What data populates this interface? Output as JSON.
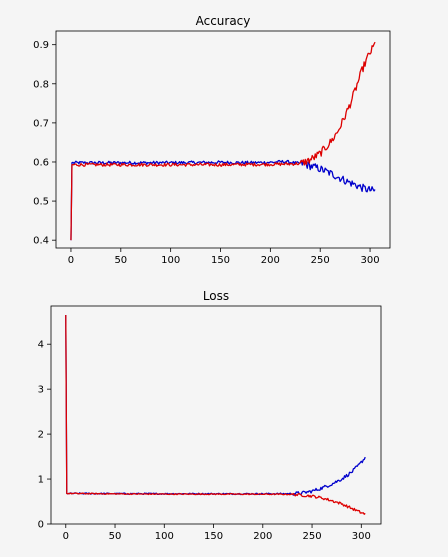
{
  "colors": {
    "background": "#f5f5f5",
    "axes_face": "#f5f5f5",
    "frame": "#000000",
    "series_blue": "#0000cc",
    "series_red": "#dd0000"
  },
  "chart_data": [
    {
      "type": "line",
      "title": "Accuracy",
      "xlabel": "",
      "ylabel": "",
      "xlim": [
        -15,
        320
      ],
      "ylim": [
        0.38,
        0.935
      ],
      "xticks": [
        0,
        50,
        100,
        150,
        200,
        250,
        300
      ],
      "yticks": [
        0.4,
        0.5,
        0.6,
        0.7,
        0.8,
        0.9
      ],
      "ytick_labels": [
        "0.4",
        "0.5",
        "0.6",
        "0.7",
        "0.8",
        "0.9"
      ],
      "grid": false,
      "legend": "none",
      "series": [
        {
          "color": "#0000cc",
          "points": [
            [
              0,
              0.4
            ],
            [
              1,
              0.598
            ],
            [
              10,
              0.598
            ],
            [
              50,
              0.598
            ],
            [
              100,
              0.598
            ],
            [
              150,
              0.599
            ],
            [
              180,
              0.598
            ],
            [
              200,
              0.599
            ],
            [
              215,
              0.601
            ],
            [
              225,
              0.597
            ],
            [
              232,
              0.596
            ],
            [
              240,
              0.59
            ],
            [
              248,
              0.584
            ],
            [
              255,
              0.577
            ],
            [
              262,
              0.569
            ],
            [
              270,
              0.559
            ],
            [
              278,
              0.549
            ],
            [
              285,
              0.542
            ],
            [
              292,
              0.534
            ],
            [
              298,
              0.529
            ],
            [
              305,
              0.526
            ]
          ],
          "noise": 0.004
        },
        {
          "color": "#dd0000",
          "points": [
            [
              0,
              0.4
            ],
            [
              1,
              0.593
            ],
            [
              10,
              0.593
            ],
            [
              50,
              0.593
            ],
            [
              100,
              0.593
            ],
            [
              150,
              0.593
            ],
            [
              200,
              0.594
            ],
            [
              220,
              0.595
            ],
            [
              230,
              0.596
            ],
            [
              237,
              0.602
            ],
            [
              243,
              0.61
            ],
            [
              250,
              0.622
            ],
            [
              256,
              0.638
            ],
            [
              262,
              0.656
            ],
            [
              268,
              0.68
            ],
            [
              274,
              0.712
            ],
            [
              280,
              0.748
            ],
            [
              286,
              0.79
            ],
            [
              292,
              0.835
            ],
            [
              298,
              0.87
            ],
            [
              302,
              0.888
            ],
            [
              305,
              0.902
            ]
          ],
          "noise": 0.004
        }
      ]
    },
    {
      "type": "line",
      "title": "Loss",
      "xlabel": "",
      "ylabel": "",
      "xlim": [
        -15,
        320
      ],
      "ylim": [
        0,
        4.85
      ],
      "xticks": [
        0,
        50,
        100,
        150,
        200,
        250,
        300
      ],
      "yticks": [
        0,
        1,
        2,
        3,
        4
      ],
      "ytick_labels": [
        "0",
        "1",
        "2",
        "3",
        "4"
      ],
      "grid": false,
      "legend": "none",
      "series": [
        {
          "color": "#0000cc",
          "points": [
            [
              0,
              4.65
            ],
            [
              1,
              0.68
            ],
            [
              50,
              0.675
            ],
            [
              100,
              0.673
            ],
            [
              150,
              0.672
            ],
            [
              200,
              0.672
            ],
            [
              230,
              0.675
            ],
            [
              240,
              0.69
            ],
            [
              250,
              0.73
            ],
            [
              260,
              0.8
            ],
            [
              270,
              0.89
            ],
            [
              280,
              1.0
            ],
            [
              290,
              1.15
            ],
            [
              298,
              1.32
            ],
            [
              304,
              1.48
            ]
          ],
          "noise": 0.015
        },
        {
          "color": "#dd0000",
          "points": [
            [
              0,
              4.65
            ],
            [
              1,
              0.68
            ],
            [
              50,
              0.67
            ],
            [
              100,
              0.665
            ],
            [
              150,
              0.665
            ],
            [
              200,
              0.663
            ],
            [
              230,
              0.66
            ],
            [
              240,
              0.64
            ],
            [
              250,
              0.62
            ],
            [
              260,
              0.58
            ],
            [
              270,
              0.52
            ],
            [
              280,
              0.45
            ],
            [
              290,
              0.35
            ],
            [
              298,
              0.27
            ],
            [
              304,
              0.22
            ]
          ],
          "noise": 0.012
        }
      ]
    }
  ]
}
